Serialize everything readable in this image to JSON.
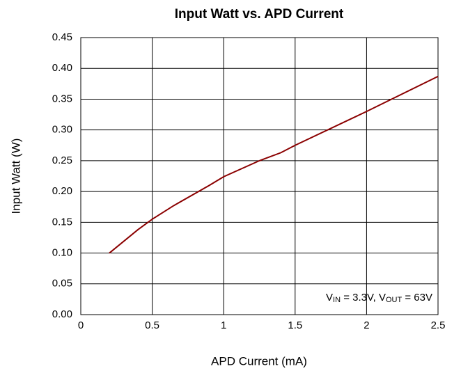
{
  "chart_data": {
    "type": "line",
    "title": "Input Watt vs. APD Current",
    "xlabel": "APD Current (mA)",
    "ylabel": "Input Watt (W)",
    "annotation": [
      "V",
      "IN",
      " = 3.3V, V",
      "OUT",
      " = 63V"
    ],
    "x": [
      0.2,
      0.4,
      0.5,
      0.65,
      0.9,
      1.0,
      1.25,
      1.4,
      1.5,
      2.0,
      2.5
    ],
    "series": [
      {
        "name": "Input Watt",
        "color": "#8b0000",
        "values": [
          0.1,
          0.138,
          0.155,
          0.177,
          0.21,
          0.224,
          0.25,
          0.263,
          0.275,
          0.33,
          0.387
        ]
      }
    ],
    "xlim": [
      0,
      2.5
    ],
    "xticks": [
      0,
      0.5,
      1,
      1.5,
      2,
      2.5
    ],
    "ylim": [
      0,
      0.45
    ],
    "yticks": [
      {
        "value": 0,
        "label": "0.00"
      },
      {
        "value": 0.05,
        "label": "0.05"
      },
      {
        "value": 0.1,
        "label": "0.10"
      },
      {
        "value": 0.15,
        "label": "0.15"
      },
      {
        "value": 0.2,
        "label": "0.20"
      },
      {
        "value": 0.25,
        "label": "0.25"
      },
      {
        "value": 0.3,
        "label": "0.30"
      },
      {
        "value": 0.35,
        "label": "0.35"
      },
      {
        "value": 0.4,
        "label": "0.40"
      },
      {
        "value": 0.45,
        "label": "0.45"
      }
    ],
    "grid": true
  }
}
